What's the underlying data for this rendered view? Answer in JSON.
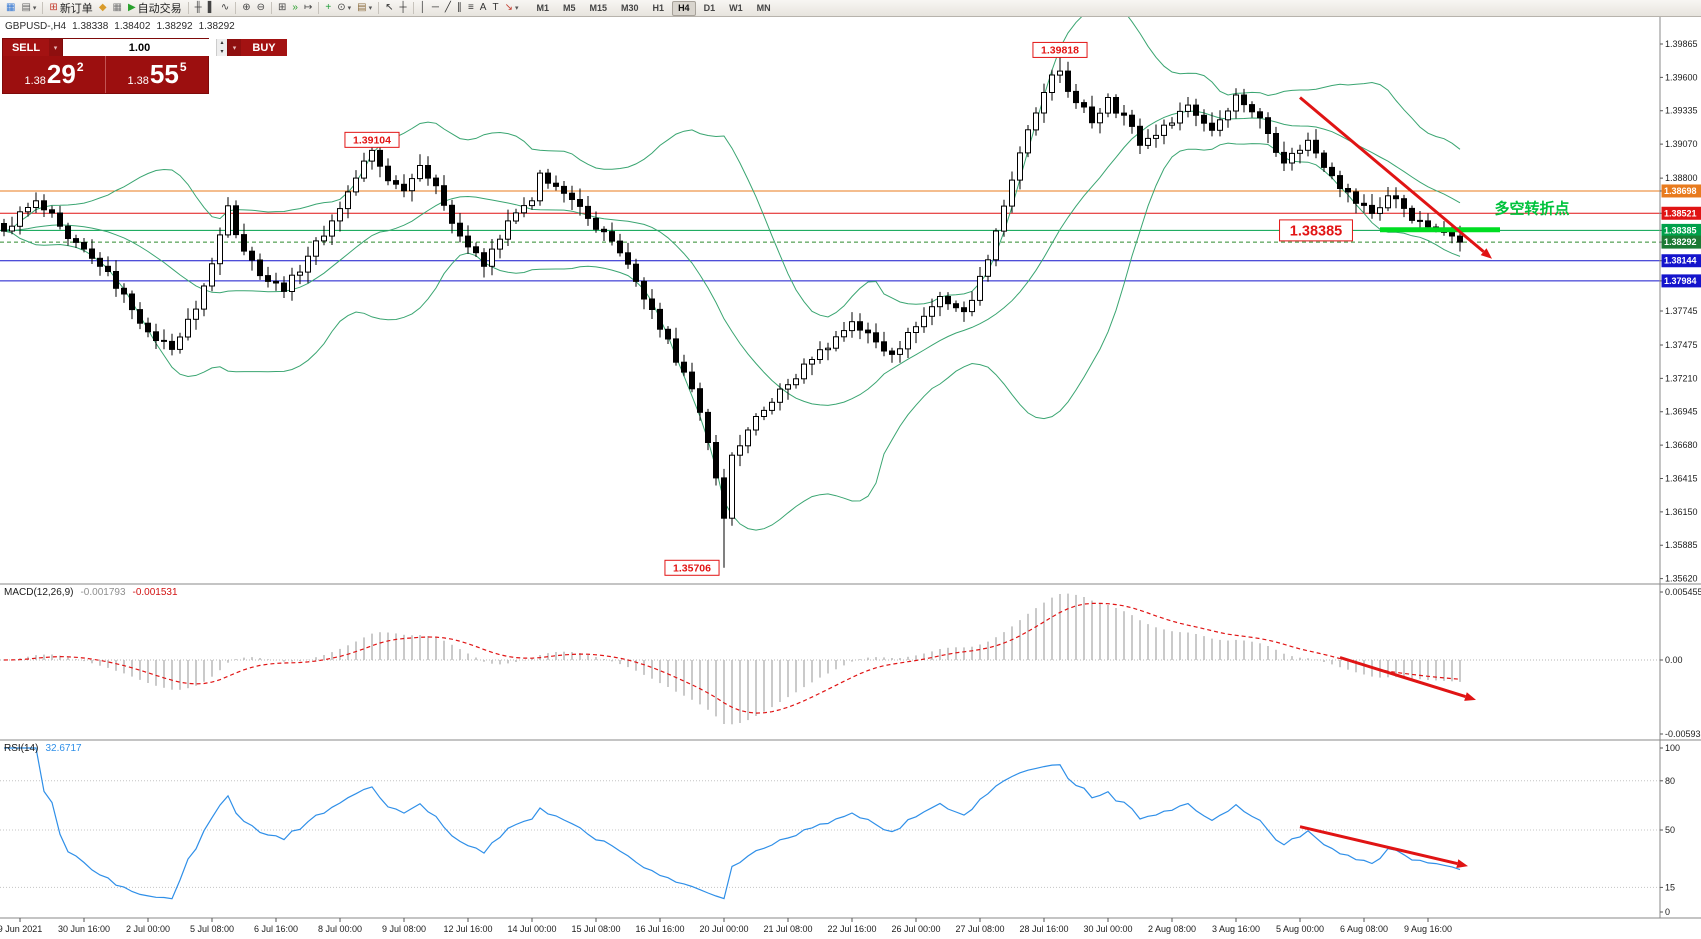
{
  "toolbar": {
    "caret_glyph": "▾",
    "buttons": [
      {
        "name": "new-chart",
        "glyph": "▦",
        "color": "#3a7bd5"
      },
      {
        "name": "profiles",
        "glyph": "▤",
        "color": "#666",
        "caret": true
      },
      {
        "sep": true
      },
      {
        "name": "new-order",
        "glyph": "⊞",
        "color": "#c43c2e",
        "label": "新订单"
      },
      {
        "name": "metaeditor",
        "glyph": "◆",
        "color": "#d99b2b"
      },
      {
        "name": "chart-windows",
        "glyph": "▦",
        "color": "#7a7a7a"
      },
      {
        "name": "autotrading",
        "glyph": "▶",
        "color": "#2aa12e",
        "label": "自动交易"
      },
      {
        "sep": true
      },
      {
        "name": "bar-chart-mode",
        "glyph": "╫",
        "color": "#444"
      },
      {
        "name": "candlestick-mode",
        "glyph": "▌",
        "color": "#444"
      },
      {
        "name": "line-chart-mode",
        "glyph": "∿",
        "color": "#444"
      },
      {
        "sep": true
      },
      {
        "name": "zoom-in",
        "glyph": "⊕",
        "color": "#444"
      },
      {
        "name": "zoom-out",
        "glyph": "⊖",
        "color": "#444"
      },
      {
        "sep": true
      },
      {
        "name": "tile-windows",
        "glyph": "⊞",
        "color": "#444"
      },
      {
        "name": "auto-scroll",
        "glyph": "»",
        "color": "#2aa12e"
      },
      {
        "name": "chart-shift",
        "glyph": "↦",
        "color": "#444"
      },
      {
        "sep": true
      },
      {
        "name": "indicators",
        "glyph": "+",
        "color": "#1f9d3a"
      },
      {
        "name": "periods",
        "glyph": "⊙",
        "color": "#444",
        "caret": true
      },
      {
        "name": "templates",
        "glyph": "▤",
        "color": "#8c6d3f",
        "caret": true
      },
      {
        "sep": true
      },
      {
        "name": "cursor",
        "glyph": "↖",
        "color": "#333"
      },
      {
        "name": "crosshair",
        "glyph": "┼",
        "color": "#333"
      },
      {
        "sep": true
      },
      {
        "name": "vertical-line",
        "glyph": "│",
        "color": "#333"
      },
      {
        "name": "horizontal-line",
        "glyph": "─",
        "color": "#333"
      },
      {
        "name": "trendline",
        "glyph": "╱",
        "color": "#333"
      },
      {
        "name": "equidistant-channel",
        "glyph": "∥",
        "color": "#333"
      },
      {
        "name": "fibonacci",
        "glyph": "≡",
        "color": "#333"
      },
      {
        "name": "text",
        "glyph": "A",
        "color": "#333"
      },
      {
        "name": "text-label",
        "glyph": "T",
        "color": "#333"
      },
      {
        "name": "arrows-tool",
        "glyph": "↘",
        "color": "#c43c2e",
        "caret": true
      }
    ],
    "timeframes": [
      "M1",
      "M5",
      "M15",
      "M30",
      "H1",
      "H4",
      "D1",
      "W1",
      "MN"
    ],
    "active_timeframe": "H4"
  },
  "chart_header": {
    "symbol": "GBPUSD-,H4",
    "open": "1.38338",
    "high": "1.38402",
    "low": "1.38292",
    "close": "1.38292"
  },
  "trade_panel": {
    "sell_label": "SELL",
    "buy_label": "BUY",
    "volume": "1.00",
    "spin_up": "▴",
    "spin_down": "▾",
    "bid_main": "1.38",
    "bid_big": "29",
    "bid_sup": "2",
    "ask_main": "1.38",
    "ask_big": "55",
    "ask_sup": "5"
  },
  "price_axis": {
    "labels": [
      {
        "text": "1.39865",
        "price": 1.39865
      },
      {
        "text": "1.39600",
        "price": 1.396
      },
      {
        "text": "1.39335",
        "price": 1.39335
      },
      {
        "text": "1.39070",
        "price": 1.3907
      },
      {
        "text": "1.38800",
        "price": 1.388
      },
      {
        "text": "1.37745",
        "price": 1.37745
      },
      {
        "text": "1.37475",
        "price": 1.37475
      },
      {
        "text": "1.37210",
        "price": 1.3721
      },
      {
        "text": "1.36945",
        "price": 1.36945
      },
      {
        "text": "1.36680",
        "price": 1.3668
      },
      {
        "text": "1.36415",
        "price": 1.36415
      },
      {
        "text": "1.36150",
        "price": 1.3615
      },
      {
        "text": "1.35885",
        "price": 1.35885
      },
      {
        "text": "1.35620",
        "price": 1.3562
      }
    ],
    "badges": [
      {
        "text": "1.38698",
        "price": 1.38698,
        "color": "#e87b1e"
      },
      {
        "text": "1.38521",
        "price": 1.38521,
        "color": "#e01414"
      },
      {
        "text": "1.38385",
        "price": 1.38385,
        "color": "#00a14b"
      },
      {
        "text": "1.38292",
        "price": 1.38292,
        "color": "#1b7a33"
      },
      {
        "text": "1.38144",
        "price": 1.38144,
        "color": "#1414cc"
      },
      {
        "text": "1.37984",
        "price": 1.37984,
        "color": "#1414cc"
      }
    ]
  },
  "hlines": [
    {
      "name": "resistance-line-orange",
      "price": 1.38698,
      "color": "#e87b1e",
      "style": "solid"
    },
    {
      "name": "resistance-line-red",
      "price": 1.38521,
      "color": "#e01414",
      "style": "solid"
    },
    {
      "name": "support-line-green",
      "price": 1.38385,
      "color": "#00a14b",
      "style": "solid"
    },
    {
      "name": "bid-price-line",
      "price": 1.38292,
      "color": "#2e8b2e",
      "style": "dash"
    },
    {
      "name": "support-line-blue-1",
      "price": 1.38144,
      "color": "#1414cc",
      "style": "solid"
    },
    {
      "name": "support-line-blue-2",
      "price": 1.37984,
      "color": "#1414cc",
      "style": "solid"
    }
  ],
  "time_axis": [
    "9 Jun 2021",
    "30 Jun 16:00",
    "2 Jul 00:00",
    "5 Jul 08:00",
    "6 Jul 16:00",
    "8 Jul 00:00",
    "9 Jul 08:00",
    "12 Jul 16:00",
    "14 Jul 00:00",
    "15 Jul 08:00",
    "16 Jul 16:00",
    "20 Jul 00:00",
    "21 Jul 08:00",
    "22 Jul 16:00",
    "26 Jul 00:00",
    "27 Jul 08:00",
    "28 Jul 16:00",
    "30 Jul 00:00",
    "2 Aug 08:00",
    "3 Aug 16:00",
    "5 Aug 00:00",
    "6 Aug 08:00",
    "9 Aug 16:00"
  ],
  "macd": {
    "name": "MACD(12,26,9)",
    "value_main": "-0.001793",
    "value_signal": "-0.001531",
    "axis": [
      {
        "text": "0.005455",
        "v": 0.005455
      },
      {
        "text": "0.00",
        "v": 0
      },
      {
        "text": "-0.005938",
        "v": -0.005938
      }
    ],
    "hist_color": "#b9b9b9",
    "signal_color": "#e01414"
  },
  "rsi": {
    "name": "RSI(14)",
    "value": "32.6717",
    "axis": [
      {
        "text": "100",
        "v": 100
      },
      {
        "text": "80",
        "v": 80
      },
      {
        "text": "50",
        "v": 50
      },
      {
        "text": "15",
        "v": 15
      },
      {
        "text": "0",
        "v": 0
      }
    ],
    "levels": [
      80,
      50,
      15
    ],
    "color": "#2f8fe8"
  },
  "chart_data": {
    "type": "candlestick",
    "symbol": "GBPUSD",
    "period": "H4",
    "bars": 183,
    "noise": 0.0011,
    "wick": 0.0009,
    "close_waypoints": [
      [
        0,
        1.3838
      ],
      [
        4,
        1.3862
      ],
      [
        8,
        1.3832
      ],
      [
        12,
        1.381
      ],
      [
        15,
        1.3788
      ],
      [
        18,
        1.3758
      ],
      [
        21,
        1.3744
      ],
      [
        24,
        1.3776
      ],
      [
        26,
        1.3812
      ],
      [
        28,
        1.3858
      ],
      [
        30,
        1.3822
      ],
      [
        33,
        1.3798
      ],
      [
        35,
        1.379
      ],
      [
        38,
        1.3818
      ],
      [
        41,
        1.3846
      ],
      [
        44,
        1.388
      ],
      [
        46,
        1.3902
      ],
      [
        48,
        1.3878
      ],
      [
        50,
        1.387
      ],
      [
        52,
        1.389
      ],
      [
        54,
        1.3874
      ],
      [
        57,
        1.3834
      ],
      [
        60,
        1.381
      ],
      [
        63,
        1.3846
      ],
      [
        66,
        1.3862
      ],
      [
        67,
        1.3884
      ],
      [
        70,
        1.3868
      ],
      [
        73,
        1.3848
      ],
      [
        76,
        1.383
      ],
      [
        79,
        1.3798
      ],
      [
        82,
        1.376
      ],
      [
        85,
        1.3726
      ],
      [
        87,
        1.3694
      ],
      [
        89,
        1.3642
      ],
      [
        90,
        1.361
      ],
      [
        91,
        1.366
      ],
      [
        93,
        1.368
      ],
      [
        96,
        1.3702
      ],
      [
        98,
        1.3716
      ],
      [
        101,
        1.3736
      ],
      [
        104,
        1.3754
      ],
      [
        106,
        1.3766
      ],
      [
        109,
        1.375
      ],
      [
        111,
        1.374
      ],
      [
        114,
        1.3762
      ],
      [
        117,
        1.3786
      ],
      [
        120,
        1.3774
      ],
      [
        122,
        1.3802
      ],
      [
        124,
        1.3838
      ],
      [
        127,
        1.39
      ],
      [
        130,
        1.3948
      ],
      [
        132,
        1.3965
      ],
      [
        134,
        1.394
      ],
      [
        136,
        1.3924
      ],
      [
        138,
        1.3944
      ],
      [
        140,
        1.393
      ],
      [
        142,
        1.3906
      ],
      [
        145,
        1.3922
      ],
      [
        148,
        1.3938
      ],
      [
        151,
        1.3918
      ],
      [
        154,
        1.3946
      ],
      [
        157,
        1.3928
      ],
      [
        160,
        1.3892
      ],
      [
        163,
        1.391
      ],
      [
        166,
        1.3882
      ],
      [
        169,
        1.386
      ],
      [
        171,
        1.3852
      ],
      [
        173,
        1.3866
      ],
      [
        175,
        1.3856
      ],
      [
        177,
        1.3846
      ],
      [
        179,
        1.384
      ],
      [
        181,
        1.3834
      ],
      [
        182,
        1.38292
      ]
    ],
    "key_high": {
      "bar": 132,
      "price": 1.39818
    },
    "second_high": {
      "bar": 46,
      "price": 1.39104
    },
    "key_low": {
      "bar": 90,
      "price": 1.35706
    },
    "bollinger": {
      "period": 20,
      "deviation": 2,
      "color": "#3aa571"
    },
    "macd_params": {
      "fast": 12,
      "slow": 26,
      "signal": 9
    },
    "rsi_period": 14,
    "annotations": [
      {
        "name": "peak-price-label",
        "text": "1.39818",
        "bar": 132,
        "price": 1.39818,
        "style": "box"
      },
      {
        "name": "swing-high-price-label",
        "text": "1.39104",
        "bar": 46,
        "price": 1.39104,
        "style": "box"
      },
      {
        "name": "support-price-label",
        "text": "1.38385",
        "bar": 164,
        "price": 1.38385,
        "style": "box-big"
      },
      {
        "name": "low-price-label",
        "text": "1.35706",
        "bar": 86,
        "price": 1.35706,
        "style": "box"
      },
      {
        "name": "turning-point-text",
        "text": "多空转折点",
        "bar": 191,
        "price": 1.3856,
        "style": "text",
        "color": "#00c33c"
      }
    ],
    "shapes": [
      {
        "name": "support-highlight-segment",
        "type": "thick-line",
        "bar1": 172,
        "bar2": 187,
        "price": 1.3839,
        "color": "#00dd22",
        "width": 5
      },
      {
        "name": "downtrend-arrow-main",
        "type": "arrow",
        "panel": "main",
        "bar1": 162,
        "v1": 1.3944,
        "bar2": 186,
        "v2": 1.3816,
        "color": "#e01414",
        "width": 3
      },
      {
        "name": "downtrend-arrow-macd",
        "type": "arrow",
        "panel": "macd",
        "bar1": 167,
        "v1": 0.0002,
        "bar2": 184,
        "v2": -0.0032,
        "color": "#e01414",
        "width": 3
      },
      {
        "name": "downtrend-arrow-rsi",
        "type": "arrow",
        "panel": "rsi",
        "bar1": 162,
        "v1": 52,
        "bar2": 183,
        "v2": 28,
        "color": "#e01414",
        "width": 3
      }
    ]
  }
}
